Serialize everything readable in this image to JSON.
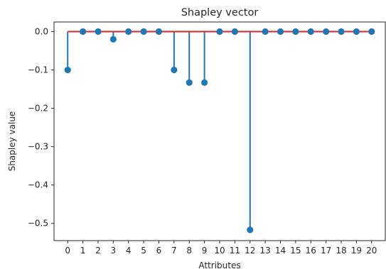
{
  "chart_data": {
    "type": "stem",
    "title": "Shapley vector",
    "xlabel": "Attributes",
    "ylabel": "Shapley value",
    "x": [
      0,
      1,
      2,
      3,
      4,
      5,
      6,
      7,
      8,
      9,
      10,
      11,
      12,
      13,
      14,
      15,
      16,
      17,
      18,
      19,
      20
    ],
    "values": [
      -0.1,
      0.0,
      0.0,
      -0.02,
      0.0,
      0.0,
      0.0,
      -0.1,
      -0.133,
      -0.133,
      0.0,
      0.0,
      -0.517,
      0.0,
      0.0,
      0.0,
      0.0,
      0.0,
      0.0,
      0.0,
      0.0
    ],
    "xlim": [
      -0.9,
      20.9
    ],
    "ylim": [
      -0.545,
      0.025
    ],
    "yticks": [
      0.0,
      -0.1,
      -0.2,
      -0.3,
      -0.4,
      -0.5
    ],
    "ytick_labels": [
      "0.0",
      "−0.1",
      "−0.2",
      "−0.3",
      "−0.4",
      "−0.5"
    ],
    "xtick_labels": [
      "0",
      "1",
      "2",
      "3",
      "4",
      "5",
      "6",
      "7",
      "8",
      "9",
      "10",
      "11",
      "12",
      "13",
      "14",
      "15",
      "16",
      "17",
      "18",
      "19",
      "20"
    ],
    "baseline": 0.0,
    "grid": false,
    "colors": {
      "stem": "#1f77b4",
      "marker": "#1f77b4",
      "baseline": "#d62728"
    }
  }
}
